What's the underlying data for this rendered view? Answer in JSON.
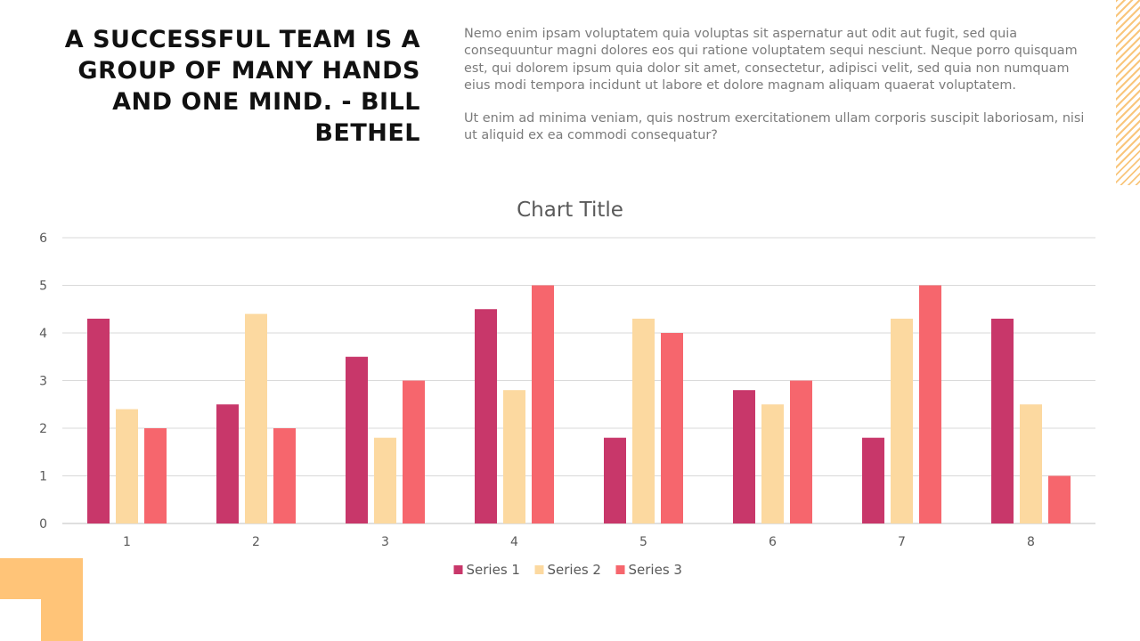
{
  "quote": "A SUCCESSFUL TEAM IS A GROUP OF MANY HANDS AND ONE MIND. - BILL BETHEL",
  "paragraphs": [
    "Nemo enim ipsam voluptatem quia voluptas sit aspernatur aut odit aut fugit, sed quia consequuntur magni dolores eos qui ratione voluptatem sequi nesciunt. Neque porro quisquam est, qui dolorem ipsum quia dolor sit amet, consectetur, adipisci velit, sed quia non numquam eius modi tempora incidunt ut labore et dolore magnam aliquam quaerat voluptatem.",
    "Ut enim ad minima veniam, quis nostrum exercitationem ullam corporis suscipit laboriosam, nisi ut aliquid ex ea commodi consequatur?"
  ],
  "chart_data": {
    "type": "bar",
    "title": "Chart Title",
    "xlabel": "",
    "ylabel": "",
    "categories": [
      "1",
      "2",
      "3",
      "4",
      "5",
      "6",
      "7",
      "8"
    ],
    "ylim": [
      0,
      6
    ],
    "yticks": [
      "0",
      "1",
      "2",
      "3",
      "4",
      "5",
      "6"
    ],
    "grid": true,
    "legend_position": "bottom",
    "series": [
      {
        "name": "Series 1",
        "color": "#c8376a",
        "values": [
          4.3,
          2.5,
          3.5,
          4.5,
          1.8,
          2.8,
          1.8,
          4.3
        ]
      },
      {
        "name": "Series 2",
        "color": "#fcd9a0",
        "values": [
          2.4,
          4.4,
          1.8,
          2.8,
          4.3,
          2.5,
          4.3,
          2.5
        ]
      },
      {
        "name": "Series 3",
        "color": "#f6666d",
        "values": [
          2.0,
          2.0,
          3.0,
          5.0,
          4.0,
          3.0,
          5.0,
          1.0
        ]
      }
    ]
  }
}
